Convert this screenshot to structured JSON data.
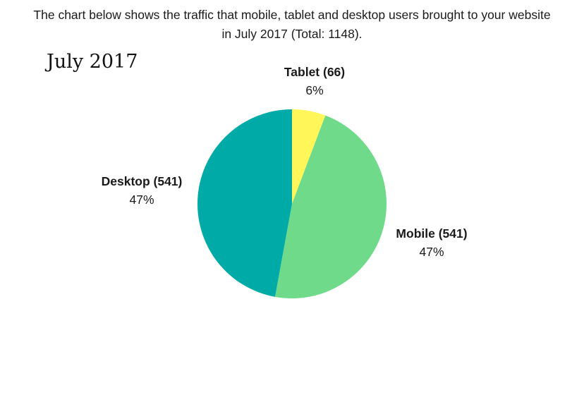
{
  "intro_text": "The chart below shows the traffic that mobile, tablet and desktop users brought to your website in July 2017 (Total: 1148).",
  "chart_data": {
    "type": "pie",
    "title": "July 2017",
    "total": 1148,
    "start_angle": "12 o'clock, clockwise",
    "slices": [
      {
        "name": "Tablet (66)",
        "label": "Tablet",
        "value": 66,
        "percent_label": "6%",
        "color": "#FFF75A"
      },
      {
        "name": "Mobile (541)",
        "label": "Mobile",
        "value": 541,
        "percent_label": "47%",
        "color": "#6FDA89"
      },
      {
        "name": "Desktop (541)",
        "label": "Desktop",
        "value": 541,
        "percent_label": "47%",
        "color": "#00ABA7"
      }
    ]
  }
}
